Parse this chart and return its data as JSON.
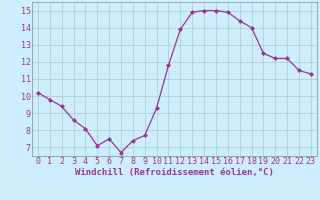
{
  "x": [
    0,
    1,
    2,
    3,
    4,
    5,
    6,
    7,
    8,
    9,
    10,
    11,
    12,
    13,
    14,
    15,
    16,
    17,
    18,
    19,
    20,
    21,
    22,
    23
  ],
  "y": [
    10.2,
    9.8,
    9.4,
    8.6,
    8.1,
    7.1,
    7.5,
    6.7,
    7.4,
    7.7,
    9.3,
    11.8,
    13.9,
    14.9,
    15.0,
    15.0,
    14.9,
    14.4,
    14.0,
    12.5,
    12.2,
    12.2,
    11.5,
    11.3
  ],
  "xlim": [
    -0.5,
    23.5
  ],
  "ylim": [
    6.5,
    15.5
  ],
  "yticks": [
    7,
    8,
    9,
    10,
    11,
    12,
    13,
    14,
    15
  ],
  "xticks": [
    0,
    1,
    2,
    3,
    4,
    5,
    6,
    7,
    8,
    9,
    10,
    11,
    12,
    13,
    14,
    15,
    16,
    17,
    18,
    19,
    20,
    21,
    22,
    23
  ],
  "xlabel": "Windchill (Refroidissement éolien,°C)",
  "line_color": "#993399",
  "marker": "D",
  "marker_size": 2.0,
  "background_color": "#cceeff",
  "grid_color": "#aacccc",
  "tick_label_color": "#993399",
  "xlabel_color": "#993399",
  "xlabel_fontsize": 6.5,
  "tick_fontsize": 6.0,
  "linewidth": 0.9
}
